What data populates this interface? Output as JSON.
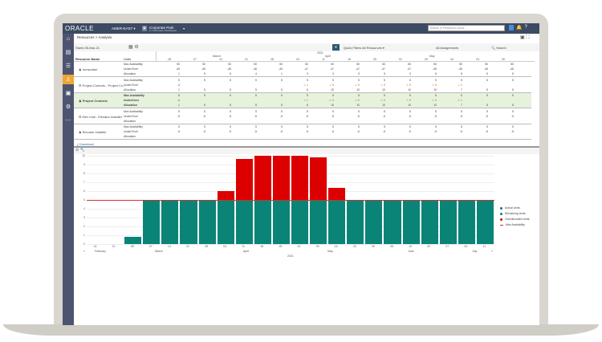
{
  "app": {
    "logo": "ORACLE",
    "region": "AMER-EAST ▾",
    "project_title": "Corporate Park",
    "project_subtitle": "in: Schumann Workspace",
    "search_placeholder": "Search in Primavera Cloud..."
  },
  "breadcrumb": {
    "parent": "Resources",
    "separator": ">",
    "current": "Analysis"
  },
  "toolbar": {
    "start_label": "Starts",
    "start_value": "05-Mar-21",
    "quick_filters_label": "Quick Filters",
    "resources_filter": "All Resources",
    "assignments_filter": "All Assignments",
    "search_label": "Search"
  },
  "grid": {
    "headers": {
      "resource_name": "Resource Name",
      "units": "Units"
    },
    "timescale": {
      "year": "2021",
      "months": [
        "March",
        "April",
        "May"
      ],
      "weeks": [
        "28",
        "07",
        "14",
        "21",
        "28",
        "04",
        "11",
        "18",
        "25",
        "02",
        "09",
        "16",
        "23",
        "30"
      ]
    },
    "rows": [
      {
        "name": "Ironworker",
        "type": "resource",
        "units": [
          "Max Availability",
          "Under/Over",
          "Allocation"
        ],
        "values": [
          [
            "50",
            "50",
            "50",
            "50",
            "50",
            "50",
            "50",
            "50",
            "50",
            "50",
            "50",
            "50",
            "50",
            "50"
          ],
          [
            "-49",
            "-45",
            "-45",
            "-46",
            "-49",
            "-47",
            "-47",
            "-47",
            "-47",
            "-47",
            "-45",
            "-45",
            "-45",
            "-45"
          ],
          [
            "1",
            "5",
            "5",
            "4",
            "1",
            "3",
            "3",
            "3",
            "3",
            "3",
            "5",
            "5",
            "5",
            "5"
          ]
        ]
      },
      {
        "name": "Project Controls - Project Co...",
        "type": "role",
        "units": [
          "Max Availability",
          "Under/Over",
          "Allocation"
        ],
        "values": [
          [
            "5",
            "5",
            "5",
            "5",
            "5",
            "5",
            "5",
            "5",
            "5",
            "5",
            "5",
            "5",
            "5",
            "5"
          ],
          [
            "-4",
            "",
            "",
            "",
            "",
            "⚠ 1",
            "⚠ 5",
            "⚠ 5",
            "⚠ 5",
            "⚠ 5",
            "⚠ 5",
            "⚠ 2",
            "",
            ""
          ],
          [
            "1",
            "5",
            "5",
            "5",
            "5",
            "6",
            "10",
            "10",
            "10",
            "10",
            "10",
            "7",
            "5",
            "5"
          ]
        ]
      },
      {
        "name": "Project Controls",
        "type": "resource",
        "highlighted": true,
        "units": [
          "Max Availability",
          "Under/Over",
          "Allocation"
        ],
        "values": [
          [
            "5",
            "5",
            "5",
            "5",
            "5",
            "5",
            "5",
            "5",
            "5",
            "5",
            "5",
            "5",
            "5",
            "5"
          ],
          [
            "-4",
            "",
            "",
            "",
            "",
            "⚠ 1",
            "⚠ 5",
            "⚠ 5",
            "⚠ 5",
            "⚠ 5",
            "⚠ 5",
            "⚠ 2",
            "",
            ""
          ],
          [
            "1",
            "5",
            "5",
            "5",
            "5",
            "6",
            "10",
            "10",
            "10",
            "10",
            "10",
            "7",
            "5",
            "5"
          ]
        ]
      },
      {
        "name": "Elev Instl - Elevator Installer",
        "type": "role",
        "units": [
          "Max Availability",
          "Under/Over",
          "Allocation"
        ],
        "values": [
          [
            "5",
            "5",
            "5",
            "5",
            "5",
            "5",
            "5",
            "5",
            "5",
            "5",
            "5",
            "5",
            "5",
            "5"
          ],
          [
            "-5",
            "-5",
            "-5",
            "-5",
            "-5",
            "-5",
            "-5",
            "-5",
            "-5",
            "-5",
            "-5",
            "-5",
            "-5",
            "-5"
          ],
          [
            "",
            "",
            "",
            "",
            "",
            "",
            "",
            "",
            "",
            "",
            "",
            "",
            "",
            ""
          ]
        ]
      },
      {
        "name": "Elevator Installer",
        "type": "resource",
        "units": [
          "Max Availability",
          "Under/Over",
          "Allocation"
        ],
        "values": [
          [
            "5",
            "5",
            "5",
            "5",
            "5",
            "5",
            "5",
            "5",
            "5",
            "5",
            "5",
            "5",
            "5",
            "5"
          ],
          [
            "-5",
            "-5",
            "-5",
            "-5",
            "-5",
            "-5",
            "-5",
            "-5",
            "-5",
            "-5",
            "-5",
            "-5",
            "-5",
            "-5"
          ],
          [
            "",
            "",
            "",
            "",
            "",
            "",
            "",
            "",
            "",
            "",
            "",
            "",
            "",
            ""
          ]
        ]
      }
    ],
    "download_label": "Download"
  },
  "chart_data": {
    "type": "bar",
    "title": "",
    "xlabel": "2021",
    "ylabel": "",
    "ylim": [
      0,
      10
    ],
    "yticks": [
      "0",
      "1",
      "2",
      "3",
      "4",
      "5",
      "6",
      "7",
      "8",
      "9",
      "10"
    ],
    "categories": [
      "14",
      "21",
      "28",
      "07",
      "14",
      "21",
      "28",
      "04",
      "11",
      "18",
      "25",
      "02",
      "09",
      "16",
      "23",
      "30",
      "06",
      "13",
      "20",
      "27",
      "04",
      "11"
    ],
    "month_labels": [
      "February",
      "March",
      "April",
      "May",
      "June",
      "July"
    ],
    "series": [
      {
        "name": "Actual Units",
        "color": "#1f5fa8",
        "values": [
          0,
          0,
          0,
          0,
          0,
          0,
          0,
          0,
          0,
          0,
          0,
          0,
          0,
          0,
          0,
          0,
          0,
          0,
          0,
          0,
          0,
          0
        ]
      },
      {
        "name": "Remaining Units",
        "color": "#0a8476",
        "values": [
          0,
          0,
          0.8,
          5,
          5,
          5,
          5,
          5,
          5,
          5,
          5,
          5,
          5,
          5,
          5,
          5,
          5,
          5,
          5,
          5,
          5,
          5
        ]
      },
      {
        "name": "Overallocated Units",
        "color": "#dd0000",
        "values": [
          0,
          0,
          0,
          0,
          0,
          0,
          0,
          1,
          4.6,
          5,
          5,
          5,
          4.8,
          1.4,
          0,
          0,
          0,
          0,
          0,
          0,
          0,
          0
        ]
      },
      {
        "name": "Max Availability",
        "color": "#cc3333",
        "values": [
          5,
          5,
          5,
          5,
          5,
          5,
          5,
          5,
          5,
          5,
          5,
          5,
          5,
          5,
          5,
          5,
          5,
          5,
          5,
          5,
          5,
          5
        ]
      }
    ],
    "legend_position": "right"
  }
}
